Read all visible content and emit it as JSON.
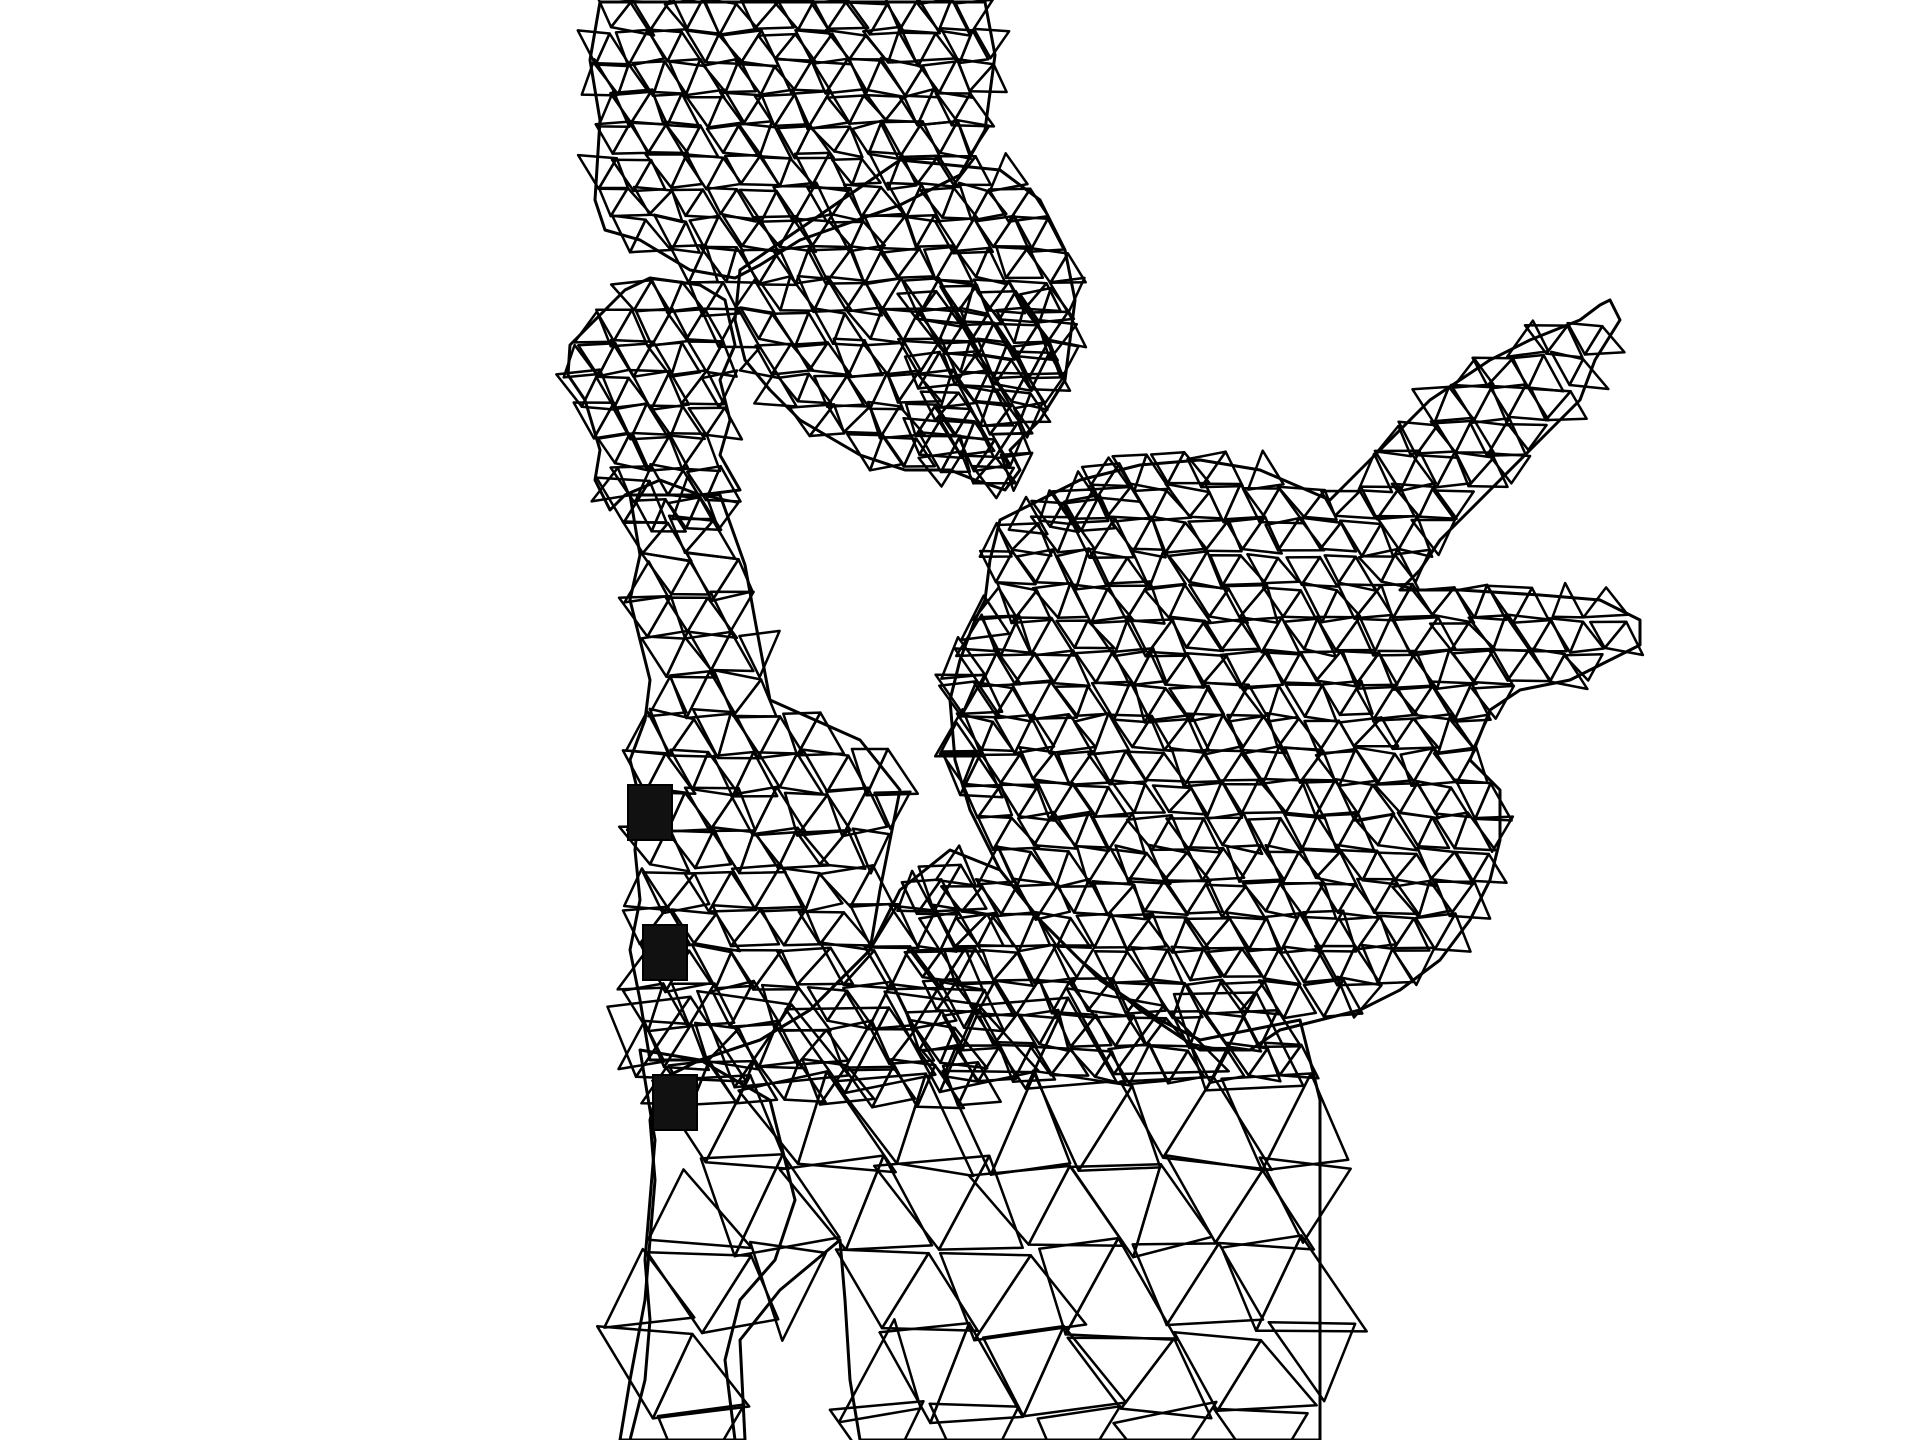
{
  "figure": {
    "kind": "triangular-mesh",
    "shape": "silhouette of a figure holding a cup, arm raised",
    "line_color": "#000000",
    "background_color": "#ffffff",
    "has_text": false
  }
}
